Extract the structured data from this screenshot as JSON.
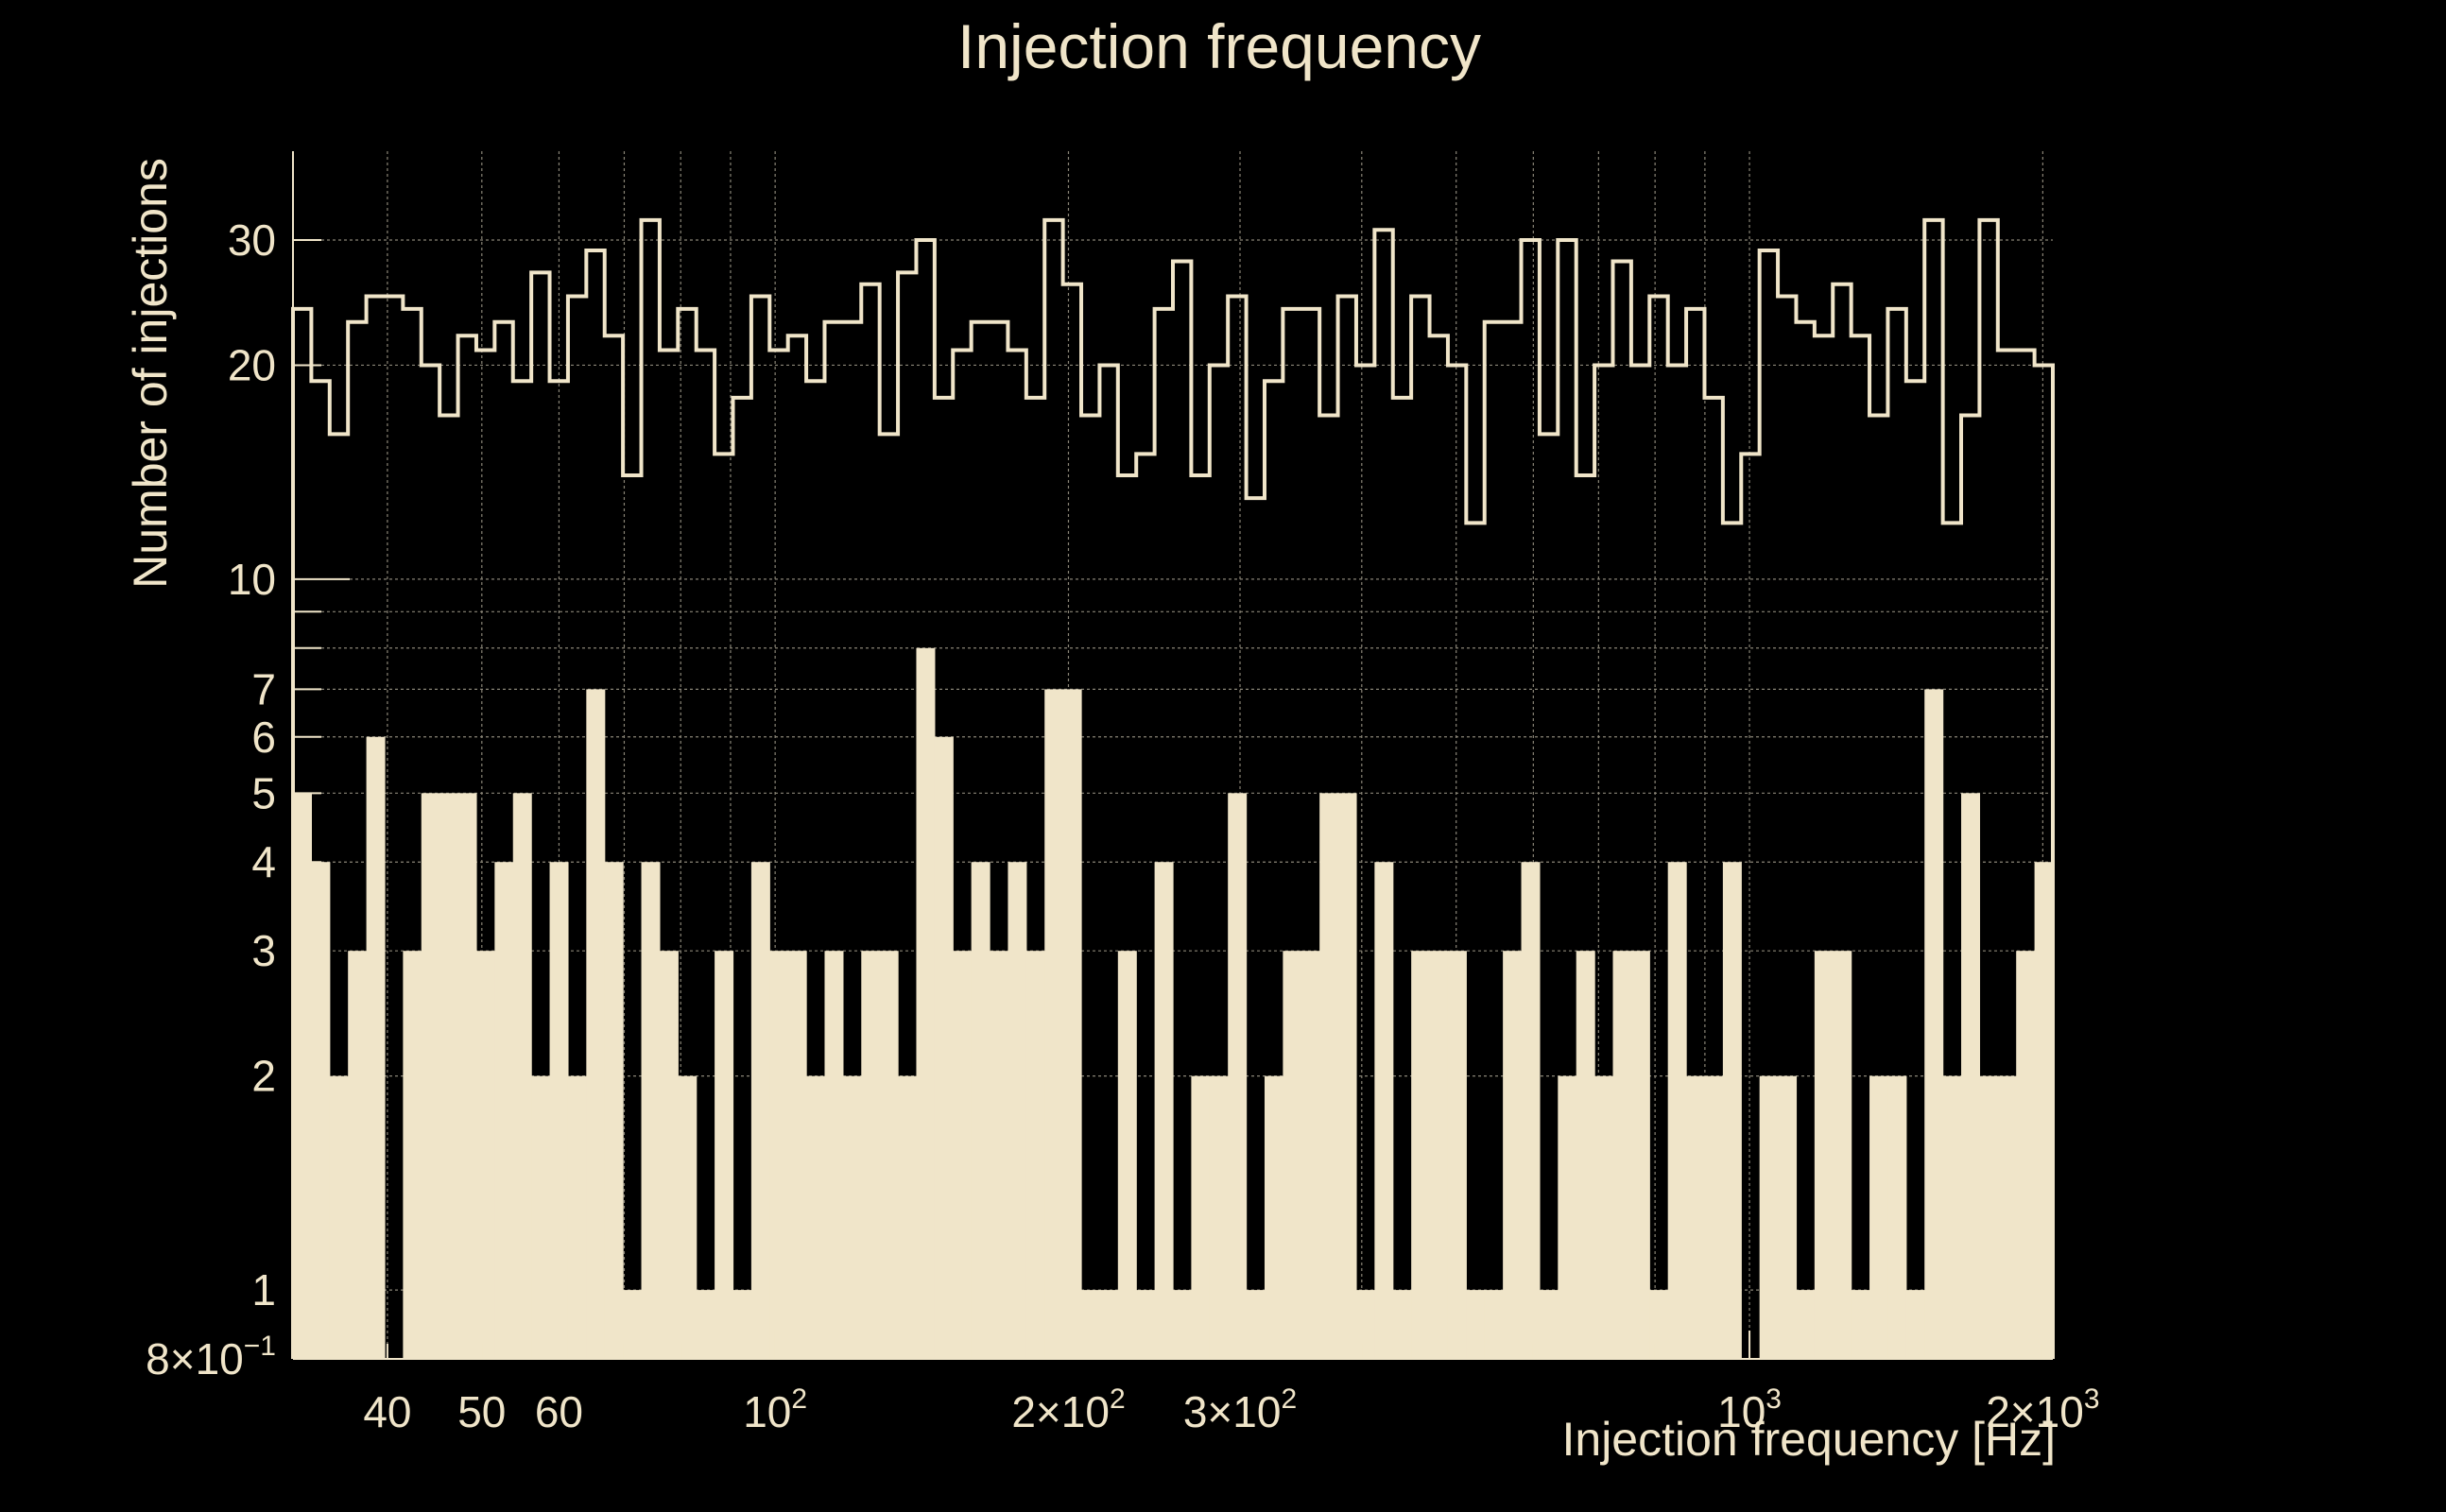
{
  "chart_data": {
    "type": "bar",
    "title": "Injection frequency",
    "xlabel": "Injection frequency [Hz]",
    "ylabel": "Number of injections",
    "xscale": "log",
    "yscale": "log",
    "xlim": [
      32,
      2048
    ],
    "ylim": [
      0.8,
      40
    ],
    "grid": true,
    "colors": {
      "background": "#000000",
      "foreground": "#f0e5c9"
    },
    "x_ticks": [
      {
        "value": 40,
        "label": "40"
      },
      {
        "value": 50,
        "label": "50"
      },
      {
        "value": 60,
        "label": "60"
      },
      {
        "value": 100,
        "base": "10",
        "exp": "2"
      },
      {
        "value": 200,
        "base": "2×10",
        "exp": "2"
      },
      {
        "value": 300,
        "base": "3×10",
        "exp": "2"
      },
      {
        "value": 1000,
        "base": "10",
        "exp": "3"
      },
      {
        "value": 2000,
        "base": "2×10",
        "exp": "3"
      }
    ],
    "y_ticks": [
      {
        "value": 0.8,
        "base": "8×10",
        "exp": "−1"
      },
      {
        "value": 1,
        "label": "1"
      },
      {
        "value": 2,
        "label": "2"
      },
      {
        "value": 3,
        "label": "3"
      },
      {
        "value": 4,
        "label": "4"
      },
      {
        "value": 5,
        "label": "5"
      },
      {
        "value": 6,
        "label": "6"
      },
      {
        "value": 7,
        "label": "7"
      },
      {
        "value": 10,
        "label": "10"
      },
      {
        "value": 20,
        "label": "20"
      },
      {
        "value": 30,
        "label": "30"
      }
    ],
    "series": [
      {
        "style": "step-outline",
        "values": [
          24,
          19,
          16,
          23,
          25,
          25,
          24,
          20,
          17,
          22,
          21,
          23,
          19,
          27,
          19,
          25,
          29,
          22,
          14,
          32,
          21,
          24,
          21,
          15,
          18,
          25,
          21,
          22,
          19,
          23,
          23,
          26,
          16,
          27,
          30,
          18,
          21,
          23,
          23,
          21,
          18,
          32,
          26,
          17,
          20,
          14,
          15,
          24,
          28,
          14,
          20,
          25,
          13,
          19,
          24,
          24,
          17,
          25,
          20,
          31,
          18,
          25,
          22,
          20,
          12,
          23,
          23,
          30,
          16,
          30,
          14,
          20,
          28,
          20,
          25,
          20,
          24,
          18,
          12,
          15,
          29,
          25,
          23,
          22,
          26,
          22,
          17,
          24,
          19,
          32,
          12,
          17,
          32,
          21,
          21,
          20
        ]
      },
      {
        "style": "filled",
        "values": [
          5,
          4,
          2,
          3,
          6,
          0.8,
          3,
          5,
          5,
          5,
          3,
          4,
          5,
          2,
          4,
          2,
          7,
          4,
          1,
          4,
          3,
          2,
          1,
          3,
          1,
          4,
          3,
          3,
          2,
          3,
          2,
          3,
          3,
          2,
          8,
          6,
          3,
          4,
          3,
          4,
          3,
          7,
          7,
          1,
          1,
          3,
          1,
          4,
          1,
          2,
          2,
          5,
          1,
          2,
          3,
          3,
          5,
          5,
          1,
          4,
          1,
          3,
          3,
          3,
          1,
          1,
          3,
          4,
          1,
          2,
          3,
          2,
          3,
          3,
          1,
          4,
          2,
          2,
          4,
          0.8,
          2,
          2,
          1,
          3,
          3,
          1,
          2,
          2,
          1,
          7,
          2,
          5,
          2,
          2,
          3,
          4
        ]
      }
    ]
  }
}
